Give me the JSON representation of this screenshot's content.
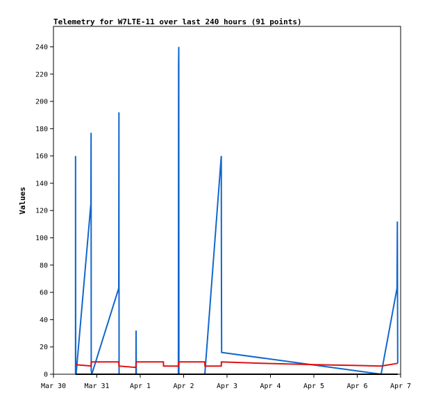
{
  "chart_data": {
    "type": "line",
    "title": "Telemetry for W7LTE-11 over last 240 hours (91 points)",
    "xlabel": "",
    "ylabel": "Values",
    "x_unit": "hours",
    "xlim": [
      0,
      192
    ],
    "ylim": [
      0,
      255
    ],
    "x_tick_positions": [
      0,
      24,
      48,
      72,
      96,
      120,
      144,
      168,
      192
    ],
    "x_tick_labels": [
      "Mar 30",
      "Mar 31",
      "Apr 1",
      "Apr 2",
      "Apr 3",
      "Apr 4",
      "Apr 5",
      "Apr 6",
      "Apr 7"
    ],
    "y_ticks": [
      0,
      20,
      40,
      60,
      80,
      100,
      120,
      140,
      160,
      180,
      200,
      220,
      240
    ],
    "grid": false,
    "series": [
      {
        "color": "#1166cc",
        "points": [
          [
            12.2,
            0
          ],
          [
            12.2,
            160
          ],
          [
            12.3,
            10
          ],
          [
            12.5,
            0
          ],
          [
            20.7,
            125
          ],
          [
            20.8,
            177
          ],
          [
            20.9,
            3
          ],
          [
            21.2,
            0
          ],
          [
            36.1,
            63
          ],
          [
            36.2,
            192
          ],
          [
            36.3,
            0
          ],
          [
            45.6,
            0
          ],
          [
            45.7,
            32
          ],
          [
            45.8,
            0
          ],
          [
            69.1,
            0
          ],
          [
            69.2,
            225
          ],
          [
            69.3,
            240
          ],
          [
            69.4,
            0
          ],
          [
            83.7,
            0
          ],
          [
            92.8,
            160
          ],
          [
            92.9,
            80
          ],
          [
            93.0,
            16
          ],
          [
            181.2,
            0
          ],
          [
            190.0,
            63
          ],
          [
            190.2,
            112
          ],
          [
            190.4,
            8
          ]
        ]
      },
      {
        "color": "#dd1111",
        "points": [
          [
            12.2,
            7
          ],
          [
            20.8,
            6
          ],
          [
            20.9,
            9
          ],
          [
            36.1,
            9
          ],
          [
            36.2,
            6
          ],
          [
            45.6,
            5
          ],
          [
            45.7,
            9
          ],
          [
            60.8,
            9
          ],
          [
            60.9,
            6
          ],
          [
            69.1,
            6
          ],
          [
            69.2,
            9
          ],
          [
            83.7,
            9
          ],
          [
            83.8,
            6
          ],
          [
            92.8,
            6
          ],
          [
            92.9,
            9
          ],
          [
            115,
            8
          ],
          [
            145,
            7
          ],
          [
            165,
            6.5
          ],
          [
            181.2,
            6
          ],
          [
            190.4,
            8
          ]
        ]
      },
      {
        "color": "#000000",
        "points": [
          [
            12.2,
            0
          ],
          [
            190.4,
            0
          ]
        ]
      }
    ]
  }
}
